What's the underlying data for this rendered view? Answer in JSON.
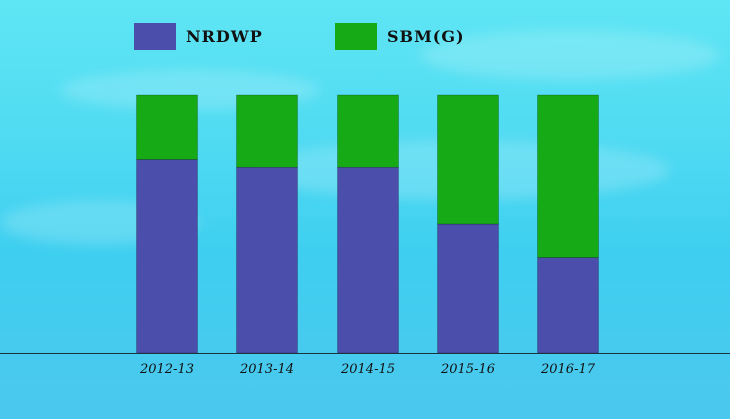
{
  "chart_data": {
    "type": "bar",
    "stacked": true,
    "percent": true,
    "categories": [
      "2012-13",
      "2013-14",
      "2014-15",
      "2015-16",
      "2016-17"
    ],
    "series": [
      {
        "name": "NRDWP",
        "color": "#4b4fab",
        "values": [
          75,
          72,
          72,
          50,
          37
        ]
      },
      {
        "name": "SBM(G)",
        "color": "#16aa16",
        "values": [
          25,
          28,
          28,
          50,
          63
        ]
      }
    ],
    "ylim": [
      0,
      100
    ],
    "legend_position": "top",
    "grid": false,
    "title": "",
    "xlabel": "",
    "ylabel": ""
  }
}
